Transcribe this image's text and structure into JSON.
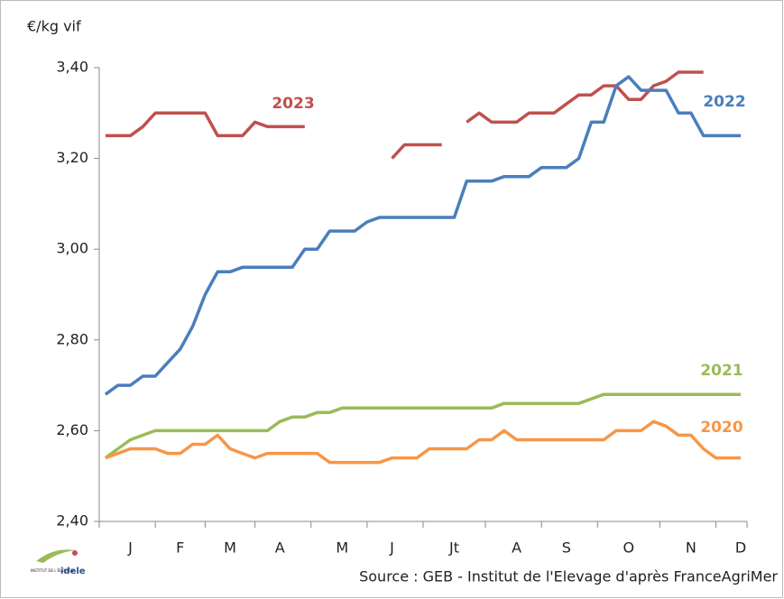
{
  "chart_data": {
    "type": "line",
    "y_label": "€/kg vif",
    "source": "Source : GEB - Institut de l'Elevage d'après FranceAgriMer",
    "logo": {
      "small": "INSTITUT DE L'ÉLEVAGE",
      "name": "idele"
    },
    "categories": [
      null,
      null,
      "J",
      null,
      null,
      null,
      "F",
      null,
      null,
      null,
      "M",
      null,
      null,
      null,
      "A",
      null,
      null,
      null,
      null,
      "M",
      null,
      null,
      null,
      "J",
      null,
      null,
      null,
      null,
      "Jt",
      null,
      null,
      null,
      null,
      "A",
      null,
      null,
      null,
      "S",
      null,
      null,
      null,
      null,
      "O",
      null,
      null,
      null,
      null,
      "N",
      null,
      null,
      null,
      "D"
    ],
    "ylim": [
      2.4,
      3.4
    ],
    "yticks": [
      {
        "value": 2.4,
        "label": "2,40"
      },
      {
        "value": 2.6,
        "label": "2,60"
      },
      {
        "value": 2.8,
        "label": "2,80"
      },
      {
        "value": 3.0,
        "label": "3,00"
      },
      {
        "value": 3.2,
        "label": "3,20"
      },
      {
        "value": 3.4,
        "label": "3,40"
      }
    ],
    "grid": false,
    "series": [
      {
        "name": "2023",
        "color": "#c0504d",
        "values": [
          3.25,
          3.25,
          3.25,
          3.27,
          3.3,
          3.3,
          3.3,
          3.3,
          3.3,
          3.25,
          3.25,
          3.25,
          3.28,
          3.27,
          3.27,
          3.27,
          3.27,
          null,
          null,
          null,
          null,
          null,
          null,
          3.2,
          3.23,
          3.23,
          3.23,
          3.23,
          null,
          3.28,
          3.3,
          3.28,
          3.28,
          3.28,
          3.3,
          3.3,
          3.3,
          3.32,
          3.34,
          3.34,
          3.36,
          3.36,
          3.33,
          3.33,
          3.36,
          3.37,
          3.39,
          3.39,
          3.39,
          null,
          null,
          null
        ]
      },
      {
        "name": "2022",
        "color": "#4a7ebb",
        "values": [
          2.68,
          2.7,
          2.7,
          2.72,
          2.72,
          2.75,
          2.78,
          2.83,
          2.9,
          2.95,
          2.95,
          2.96,
          2.96,
          2.96,
          2.96,
          2.96,
          3.0,
          3.0,
          3.04,
          3.04,
          3.04,
          3.06,
          3.07,
          3.07,
          3.07,
          3.07,
          3.07,
          3.07,
          3.07,
          3.15,
          3.15,
          3.15,
          3.16,
          3.16,
          3.16,
          3.18,
          3.18,
          3.18,
          3.2,
          3.28,
          3.28,
          3.36,
          3.38,
          3.35,
          3.35,
          3.35,
          3.3,
          3.3,
          3.25,
          3.25,
          3.25,
          3.25
        ]
      },
      {
        "name": "2021",
        "color": "#9bbb59",
        "values": [
          2.54,
          2.56,
          2.58,
          2.59,
          2.6,
          2.6,
          2.6,
          2.6,
          2.6,
          2.6,
          2.6,
          2.6,
          2.6,
          2.6,
          2.62,
          2.63,
          2.63,
          2.64,
          2.64,
          2.65,
          2.65,
          2.65,
          2.65,
          2.65,
          2.65,
          2.65,
          2.65,
          2.65,
          2.65,
          2.65,
          2.65,
          2.65,
          2.66,
          2.66,
          2.66,
          2.66,
          2.66,
          2.66,
          2.66,
          2.67,
          2.68,
          2.68,
          2.68,
          2.68,
          2.68,
          2.68,
          2.68,
          2.68,
          2.68,
          2.68,
          2.68,
          2.68
        ]
      },
      {
        "name": "2020",
        "color": "#f79646",
        "values": [
          2.54,
          2.55,
          2.56,
          2.56,
          2.56,
          2.55,
          2.55,
          2.57,
          2.57,
          2.59,
          2.56,
          2.55,
          2.54,
          2.55,
          2.55,
          2.55,
          2.55,
          2.55,
          2.53,
          2.53,
          2.53,
          2.53,
          2.53,
          2.54,
          2.54,
          2.54,
          2.56,
          2.56,
          2.56,
          2.56,
          2.58,
          2.58,
          2.6,
          2.58,
          2.58,
          2.58,
          2.58,
          2.58,
          2.58,
          2.58,
          2.58,
          2.6,
          2.6,
          2.6,
          2.62,
          2.61,
          2.59,
          2.59,
          2.56,
          2.54,
          2.54,
          2.54
        ]
      }
    ]
  }
}
